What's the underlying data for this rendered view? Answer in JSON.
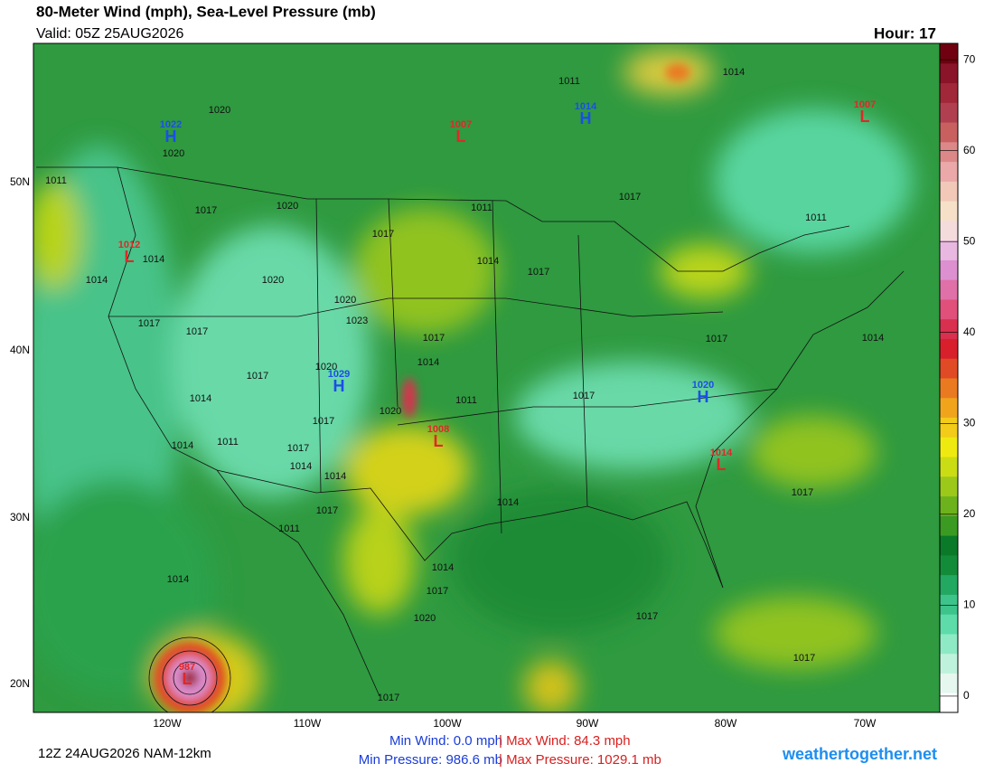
{
  "header": {
    "title": "80-Meter Wind (mph), Sea-Level Pressure (mb)",
    "valid": "Valid: 05Z 25AUG2026",
    "hour": "Hour: 17"
  },
  "map": {
    "lon_labels": [
      "120W",
      "110W",
      "100W",
      "90W",
      "80W",
      "70W"
    ],
    "lat_labels": [
      "50N",
      "40N",
      "30N",
      "20N"
    ],
    "centers": [
      {
        "letter": "H",
        "value": 1022
      },
      {
        "letter": "L",
        "value": 1007
      },
      {
        "letter": "H",
        "value": 1014
      },
      {
        "letter": "L",
        "value": 1007
      },
      {
        "letter": "L",
        "value": 1012
      },
      {
        "letter": "H",
        "value": 1029
      },
      {
        "letter": "L",
        "value": 1008
      },
      {
        "letter": "H",
        "value": 1020
      },
      {
        "letter": "L",
        "value": 1014
      },
      {
        "letter": "L",
        "value": 987
      }
    ],
    "isobar_labels": [
      1020,
      1020,
      1011,
      1014,
      1011,
      1017,
      1020,
      1011,
      1017,
      1011,
      1017,
      1014,
      1014,
      1014,
      1017,
      1020,
      1020,
      1023,
      1017,
      1017,
      1017,
      1017,
      1014,
      1014,
      1020,
      1017,
      1014,
      1011,
      1017,
      1020,
      1017,
      1014,
      1011,
      1017,
      1014,
      1014,
      1017,
      1014,
      1017,
      1011,
      1014,
      1014,
      1017,
      1020,
      1017,
      1017,
      1017
    ]
  },
  "colorbar": {
    "lim": [
      -1.8,
      71.8
    ],
    "ticks": [
      0,
      10,
      20,
      30,
      40,
      50,
      60,
      70
    ],
    "colors": [
      "#ffffff",
      "#e6f7ef",
      "#bff2dc",
      "#8eeac4",
      "#5ddcaa",
      "#3cc48a",
      "#22a860",
      "#138c3a",
      "#0a7a28",
      "#3a9a22",
      "#6cb21c",
      "#9cc81a",
      "#cadc14",
      "#eeea10",
      "#f2cc18",
      "#f0a41c",
      "#ea7a20",
      "#e04a24",
      "#d8202c",
      "#d8304e",
      "#e0507a",
      "#e070a8",
      "#dc90d0",
      "#e8b8e0",
      "#f4dcdc",
      "#f6e0c8",
      "#f2c8b8",
      "#eaa8a8",
      "#dc8888",
      "#c86060",
      "#b04050",
      "#a02838",
      "#8a1428",
      "#700010"
    ]
  },
  "footer": {
    "model": "12Z 24AUG2026 NAM-12km",
    "min_wind": "Min Wind:  0.0 mph",
    "max_wind": "| Max Wind: 84.3 mph",
    "min_pressure": "Min Pressure: 986.6 mb",
    "max_pressure": "| Max Pressure: 1029.1 mb",
    "site": "weathertogether.net"
  }
}
